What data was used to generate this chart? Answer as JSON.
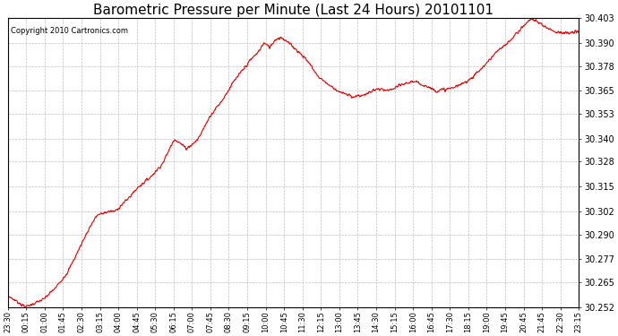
{
  "title": "Barometric Pressure per Minute (Last 24 Hours) 20101101",
  "copyright": "Copyright 2010 Cartronics.com",
  "line_color": "#dd0000",
  "bg_color": "#ffffff",
  "plot_bg_color": "#ffffff",
  "grid_color": "#b8b8b8",
  "ylim": [
    30.252,
    30.403
  ],
  "yticks": [
    30.252,
    30.265,
    30.277,
    30.29,
    30.302,
    30.315,
    30.328,
    30.34,
    30.353,
    30.365,
    30.378,
    30.39,
    30.403
  ],
  "xtick_labels": [
    "23:30",
    "00:15",
    "01:00",
    "01:45",
    "02:30",
    "03:15",
    "04:00",
    "04:45",
    "05:30",
    "06:15",
    "07:00",
    "07:45",
    "08:30",
    "09:15",
    "10:00",
    "10:45",
    "11:30",
    "12:15",
    "13:00",
    "13:45",
    "14:30",
    "15:15",
    "16:00",
    "16:45",
    "17:30",
    "18:15",
    "19:00",
    "19:45",
    "20:45",
    "21:45",
    "22:30",
    "23:15"
  ],
  "title_fontsize": 11,
  "copyright_fontsize": 6,
  "ytick_fontsize": 7,
  "xtick_fontsize": 6,
  "key_minutes": [
    0,
    45,
    90,
    120,
    150,
    165,
    195,
    210,
    225,
    255,
    270,
    300,
    330,
    360,
    390,
    420,
    450,
    465,
    480,
    510,
    540,
    570,
    600,
    615,
    630,
    645,
    660,
    675,
    690,
    720,
    750,
    765,
    780,
    810,
    840,
    870,
    900,
    930,
    960,
    990,
    1020,
    1050,
    1080,
    1110,
    1140,
    1170,
    1200,
    1230,
    1260,
    1290,
    1320,
    1350,
    1380,
    1410,
    1439
  ],
  "key_values": [
    30.258,
    30.252,
    30.256,
    30.262,
    30.27,
    30.276,
    30.289,
    30.295,
    30.3,
    30.302,
    30.302,
    30.308,
    30.315,
    30.32,
    30.327,
    30.34,
    30.335,
    30.337,
    30.34,
    30.352,
    30.36,
    30.37,
    30.378,
    30.382,
    30.385,
    30.39,
    30.388,
    30.392,
    30.393,
    30.388,
    30.382,
    30.378,
    30.373,
    30.368,
    30.364,
    30.362,
    30.363,
    30.366,
    30.365,
    30.368,
    30.37,
    30.368,
    30.365,
    30.366,
    30.368,
    30.372,
    30.378,
    30.385,
    30.39,
    30.397,
    30.403,
    30.399,
    30.396,
    30.395,
    30.396
  ]
}
